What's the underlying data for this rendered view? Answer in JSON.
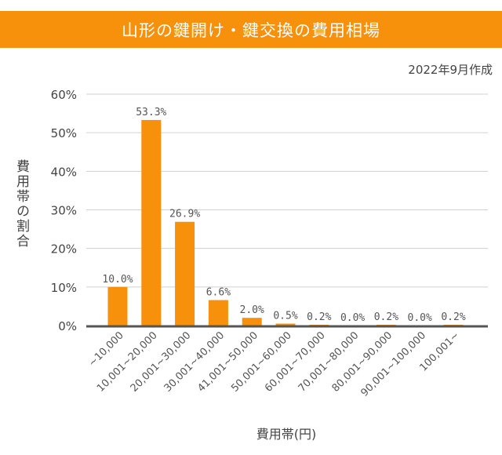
{
  "chart_data": {
    "type": "bar",
    "title": "山形の鍵開け・鍵交換の費用相場",
    "subtitle": "2022年9月作成",
    "xlabel": "費用帯(円)",
    "ylabel": "費用帯の割合",
    "categories": [
      "~10,000",
      "10,001~20,000",
      "20,001~30,000",
      "30,001~40,000",
      "41,001~50,000",
      "50,001~60,000",
      "60,001~70,000",
      "70,001~80,000",
      "80,001~90,000",
      "90,001~100,000",
      "100,001~"
    ],
    "values": [
      10.0,
      53.3,
      26.9,
      6.6,
      2.0,
      0.5,
      0.2,
      0.0,
      0.2,
      0.0,
      0.2
    ],
    "data_labels": [
      "10.0%",
      "53.3%",
      "26.9%",
      "6.6%",
      "2.0%",
      "0.5%",
      "0.2%",
      "0.0%",
      "0.2%",
      "0.0%",
      "0.2%"
    ],
    "yticks": [
      "0%",
      "10%",
      "20%",
      "30%",
      "40%",
      "50%",
      "60%"
    ],
    "ylim": [
      0,
      60
    ],
    "grid": true,
    "bar_color": "#f7900a",
    "header_color": "#f7900a"
  }
}
